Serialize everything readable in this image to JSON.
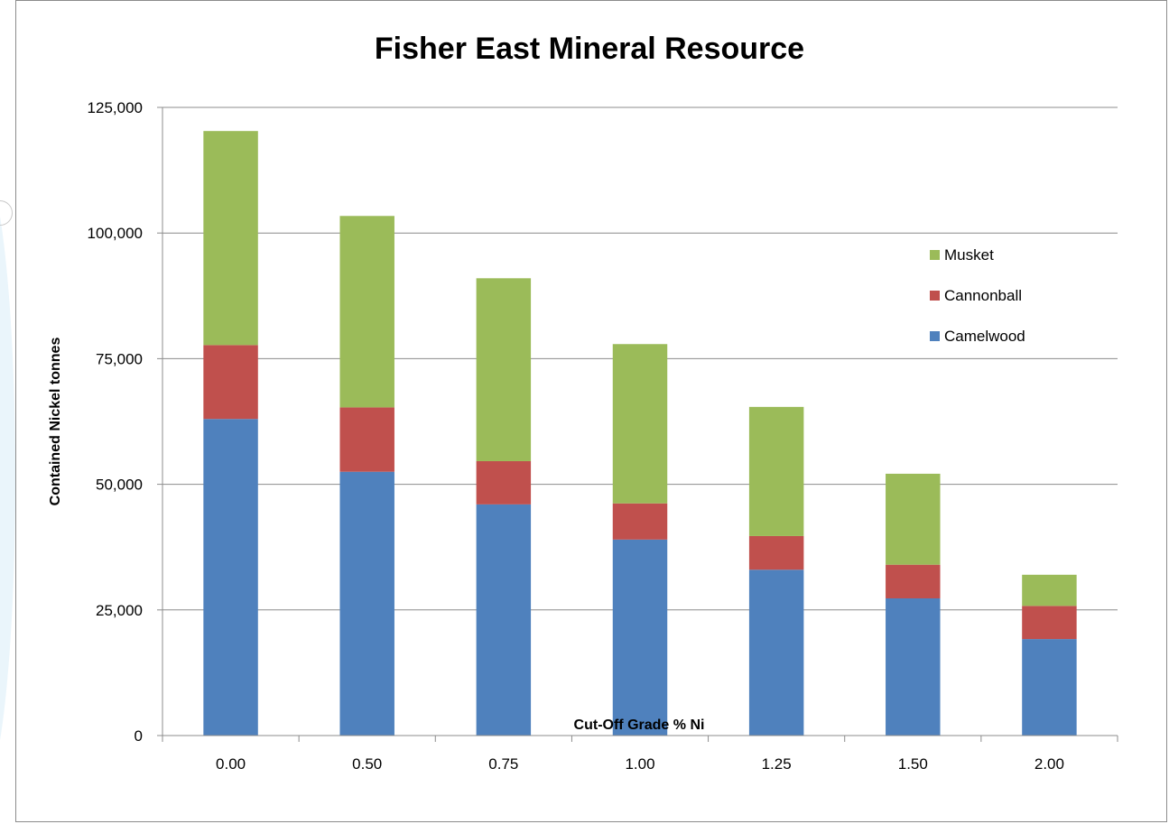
{
  "chart_data": {
    "type": "bar",
    "stacked": true,
    "title": "Fisher East Mineral Resource",
    "xlabel": "Cut-Off Grade % Ni",
    "ylabel": "Contained Nickel tonnes",
    "ylim": [
      0,
      125000
    ],
    "yticks": [
      "0",
      "25,000",
      "50,000",
      "75,000",
      "100,000",
      "125,000"
    ],
    "ytick_values": [
      0,
      25000,
      50000,
      75000,
      100000,
      125000
    ],
    "grid": true,
    "legend_position": "right",
    "categories": [
      "0.00",
      "0.50",
      "0.75",
      "1.00",
      "1.25",
      "1.50",
      "2.00"
    ],
    "series": [
      {
        "name": "Camelwood",
        "color": "#4f81bd",
        "values": [
          63000,
          52500,
          46000,
          39000,
          33000,
          27300,
          19200
        ]
      },
      {
        "name": "Cannonball",
        "color": "#c0504d",
        "values": [
          14700,
          12800,
          8600,
          7200,
          6700,
          6700,
          6600
        ]
      },
      {
        "name": "Musket",
        "color": "#9bbb59",
        "values": [
          42600,
          38100,
          36400,
          31700,
          25700,
          18100,
          6200
        ]
      }
    ],
    "legend_order": [
      "Musket",
      "Cannonball",
      "Camelwood"
    ]
  }
}
